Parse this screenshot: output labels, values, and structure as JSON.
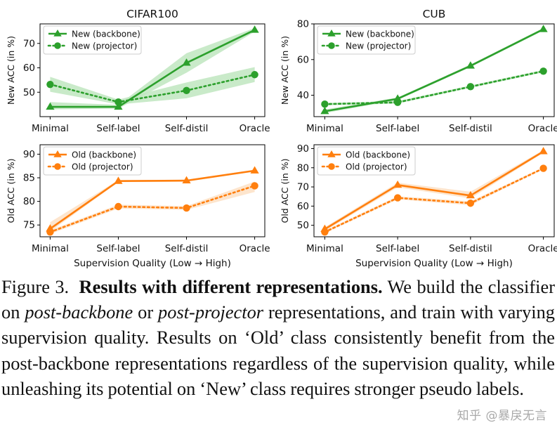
{
  "chart_data": [
    {
      "type": "line",
      "title": "CIFAR100",
      "xlabel": "",
      "ylabel": "New ACC (in %)",
      "categories": [
        "Minimal",
        "Self-label",
        "Self-distil",
        "Oracle"
      ],
      "ylim": [
        40,
        78
      ],
      "yticks": [
        50,
        60,
        70
      ],
      "color": "#2ca02c",
      "band": "#bfe6bf",
      "legend": "top-left",
      "series": [
        {
          "name": "New (backbone)",
          "style": "solid",
          "marker": "triangle",
          "values": [
            44.0,
            44.0,
            62.0,
            75.5
          ],
          "lower": [
            43.0,
            43.3,
            58.0,
            74.8
          ],
          "upper": [
            46.0,
            44.8,
            66.0,
            76.3
          ]
        },
        {
          "name": "New (projector)",
          "style": "dotted",
          "marker": "circle",
          "values": [
            53.2,
            46.0,
            50.7,
            57.2
          ],
          "lower": [
            50.2,
            45.0,
            47.5,
            54.2
          ],
          "upper": [
            56.3,
            47.0,
            54.0,
            60.3
          ]
        }
      ]
    },
    {
      "type": "line",
      "title": "CUB",
      "xlabel": "",
      "ylabel": "New ACC (in %)",
      "categories": [
        "Minimal",
        "Self-label",
        "Self-distil",
        "Oracle"
      ],
      "ylim": [
        28,
        80
      ],
      "yticks": [
        40,
        60,
        80
      ],
      "color": "#2ca02c",
      "band": "#bfe6bf",
      "legend": "top-left",
      "series": [
        {
          "name": "New (backbone)",
          "style": "solid",
          "marker": "triangle",
          "values": [
            31.0,
            38.0,
            56.5,
            77.0
          ],
          "lower": [
            30.0,
            37.3,
            55.8,
            76.3
          ],
          "upper": [
            32.0,
            38.7,
            57.2,
            77.7
          ]
        },
        {
          "name": "New (projector)",
          "style": "dotted",
          "marker": "circle",
          "values": [
            35.0,
            36.0,
            44.8,
            53.5
          ],
          "lower": [
            34.3,
            35.3,
            44.1,
            52.8
          ],
          "upper": [
            35.7,
            36.7,
            45.5,
            54.2
          ]
        }
      ]
    },
    {
      "type": "line",
      "title": "",
      "xlabel": "Supervision Quality (Low → High)",
      "ylabel": "Old ACC (in %)",
      "categories": [
        "Minimal",
        "Self-label",
        "Self-distil",
        "Oracle"
      ],
      "ylim": [
        72.5,
        92
      ],
      "yticks": [
        75,
        80,
        85,
        90
      ],
      "color": "#ff7f0e",
      "band": "#fde0c4",
      "legend": "top-left",
      "series": [
        {
          "name": "Old (backbone)",
          "style": "solid",
          "marker": "triangle",
          "values": [
            74.2,
            84.3,
            84.4,
            86.5
          ],
          "lower": [
            73.6,
            84.1,
            84.2,
            86.3
          ],
          "upper": [
            75.6,
            84.5,
            84.6,
            86.7
          ]
        },
        {
          "name": "Old (projector)",
          "style": "dotted",
          "marker": "circle",
          "values": [
            73.5,
            78.9,
            78.6,
            83.3
          ],
          "lower": [
            73.1,
            78.5,
            78.2,
            82.0
          ],
          "upper": [
            73.9,
            79.3,
            79.0,
            84.2
          ]
        }
      ]
    },
    {
      "type": "line",
      "title": "",
      "xlabel": "Supervision Quality (Low → High)",
      "ylabel": "Old ACC (in %)",
      "categories": [
        "Minimal",
        "Self-label",
        "Self-distil",
        "Oracle"
      ],
      "ylim": [
        44,
        92
      ],
      "yticks": [
        50,
        60,
        70,
        80,
        90
      ],
      "color": "#ff7f0e",
      "band": "#fde0c4",
      "legend": "top-left",
      "series": [
        {
          "name": "Old (backbone)",
          "style": "solid",
          "marker": "triangle",
          "values": [
            48.0,
            71.0,
            65.5,
            88.5
          ],
          "lower": [
            47.0,
            69.8,
            64.0,
            87.8
          ],
          "upper": [
            49.0,
            72.2,
            67.5,
            89.2
          ]
        },
        {
          "name": "Old (projector)",
          "style": "dotted",
          "marker": "circle",
          "values": [
            46.5,
            64.3,
            61.5,
            79.7
          ],
          "lower": [
            45.8,
            63.5,
            60.5,
            79.2
          ],
          "upper": [
            47.2,
            65.1,
            62.5,
            80.2
          ]
        }
      ]
    }
  ],
  "caption": {
    "label": "Figure 3.",
    "title": "Results with different representations.",
    "text_1": "We build the classifier on",
    "em_1": "post-backbone",
    "text_2": "or",
    "em_2": "post-projector",
    "text_3": "representations, and train with varying supervision quality. Results on ‘Old’ class consistently benefit from the post-backbone representations regardless of the supervision quality, while unleashing its potential on ‘New’ class requires stronger pseudo labels."
  },
  "watermark": "知乎 @暴戾无言"
}
